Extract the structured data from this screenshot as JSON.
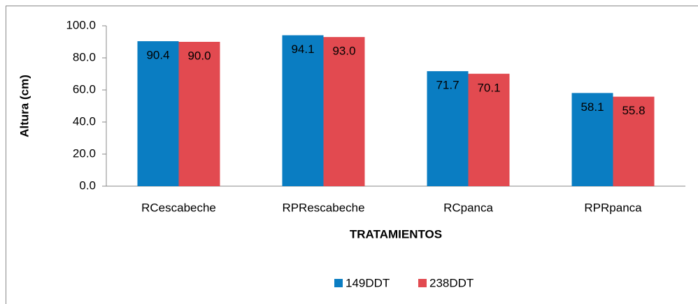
{
  "chart_data": {
    "type": "bar",
    "y_label": "Altura (cm)",
    "x_label": "TRATAMIENTOS",
    "categories": [
      "RCescabeche",
      "RPRescabeche",
      "RCpanca",
      "RPRpanca"
    ],
    "series": [
      {
        "name": "149DDT",
        "color": "#0a7dc2",
        "values": [
          90.4,
          94.1,
          71.7,
          58.1
        ],
        "value_labels": [
          "90.4",
          "94.1",
          "71.7",
          "58.1"
        ]
      },
      {
        "name": "238DDT",
        "color": "#e24a50",
        "values": [
          90.0,
          93.0,
          70.1,
          55.8
        ],
        "value_labels": [
          "90.0",
          "93.0",
          "70.1",
          "55.8"
        ]
      }
    ],
    "ylim": [
      0,
      100
    ],
    "yticks": [
      {
        "value": 0,
        "label": "0.0"
      },
      {
        "value": 20,
        "label": "20.0"
      },
      {
        "value": 40,
        "label": "40.0"
      },
      {
        "value": 60,
        "label": "60.0"
      },
      {
        "value": 80,
        "label": "80.0"
      },
      {
        "value": 100,
        "label": "100.0"
      }
    ],
    "legend": "bottom"
  }
}
